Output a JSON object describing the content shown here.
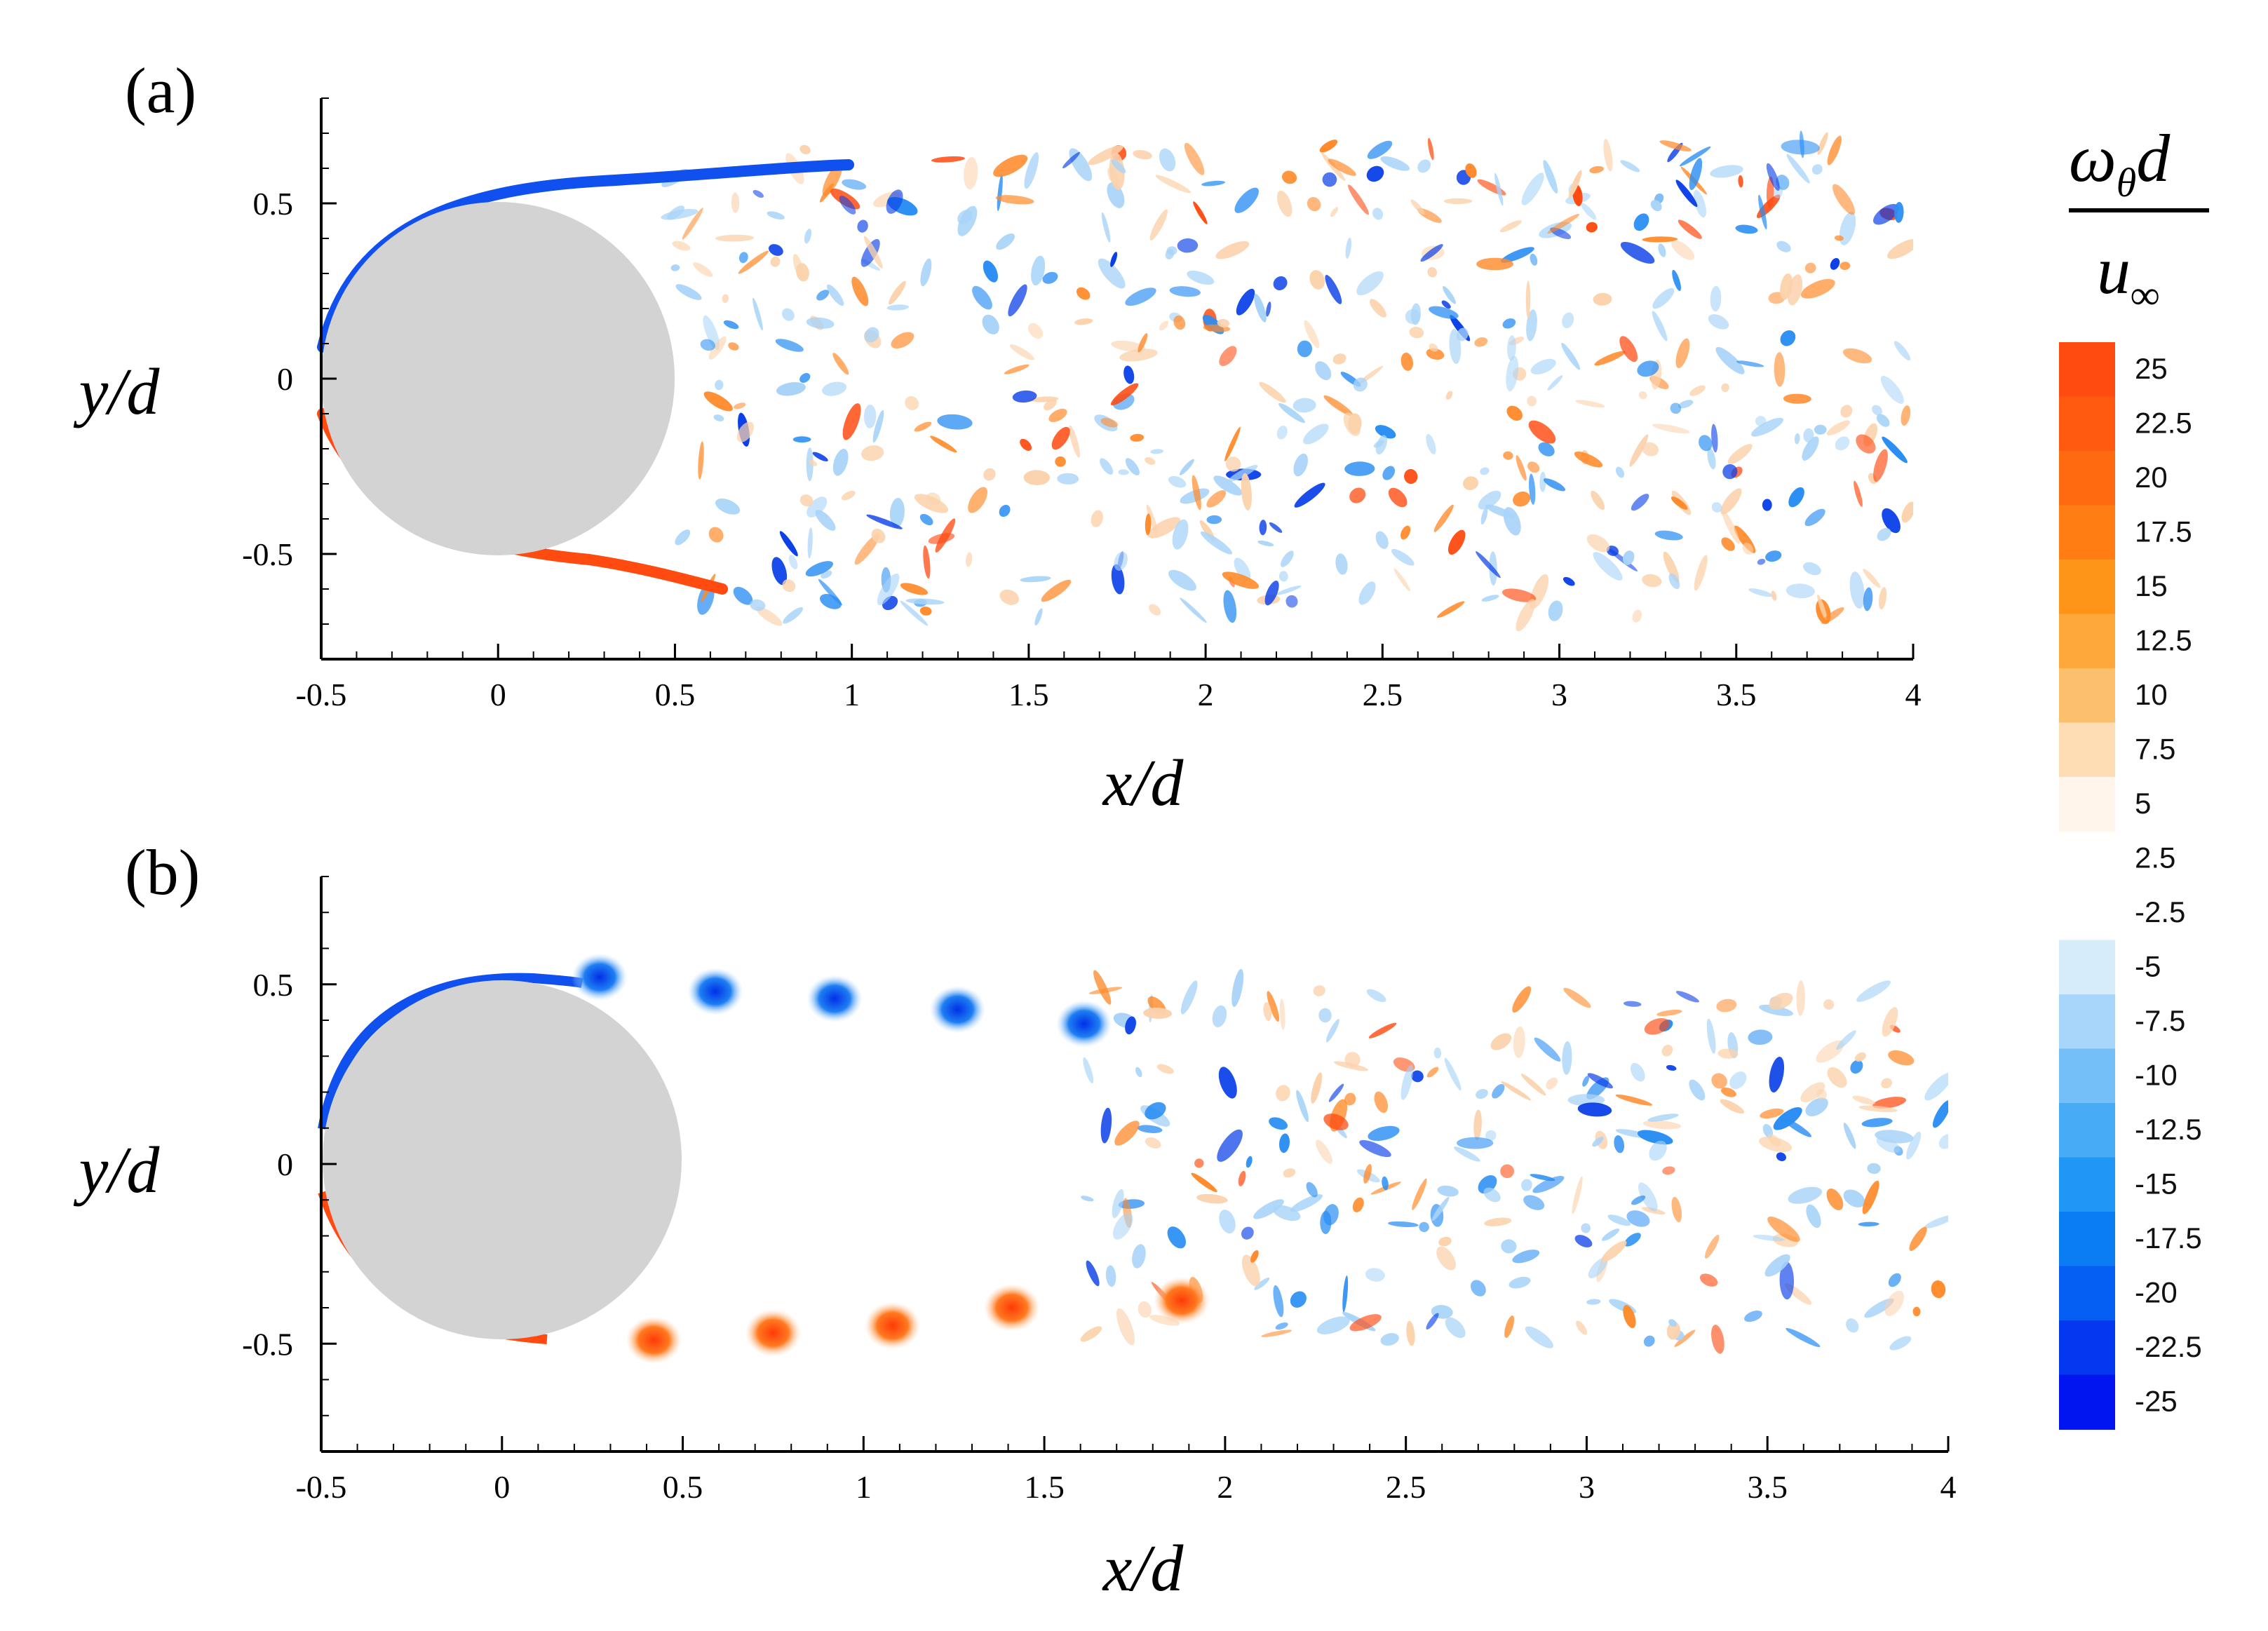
{
  "chart_data": [
    {
      "type": "heatmap",
      "panel": "(a)",
      "xlabel": "x/d",
      "ylabel": "y/d",
      "xlim": [
        -0.5,
        4
      ],
      "ylim": [
        -0.8,
        0.8
      ],
      "x_ticks": [
        "-0.5",
        "0",
        "0.5",
        "1",
        "1.5",
        "2",
        "2.5",
        "3",
        "3.5",
        "4"
      ],
      "y_ticks": [
        "0.5",
        "0",
        "-0.5"
      ],
      "body": {
        "shape": "circle",
        "center": [
          0,
          0
        ],
        "diameter": 1,
        "color": "#d3d3d3"
      },
      "description": "",
      "shear_layers": [
        {
          "name": "upper",
          "sign": "negative",
          "from_x": -0.5,
          "to_x": 1.05,
          "end_y": 0.6
        },
        {
          "name": "lower",
          "sign": "positive",
          "from_x": -0.5,
          "to_x": 0.65,
          "end_y": -0.6
        }
      ],
      "wake_extent_x": [
        0.5,
        4
      ]
    },
    {
      "type": "heatmap",
      "panel": "(b)",
      "xlabel": "x/d",
      "ylabel": "y/d",
      "xlim": [
        -0.5,
        4
      ],
      "ylim": [
        -0.8,
        0.8
      ],
      "x_ticks": [
        "-0.5",
        "0",
        "0.5",
        "1",
        "1.5",
        "2",
        "2.5",
        "3",
        "3.5",
        "4"
      ],
      "y_ticks": [
        "0.5",
        "0",
        "-0.5"
      ],
      "body": {
        "shape": "circle",
        "center": [
          0,
          0
        ],
        "diameter": 1,
        "color": "#d3d3d3"
      },
      "vortices_upper": [
        {
          "x": 0.27,
          "y": 0.52,
          "value": -25
        },
        {
          "x": 0.59,
          "y": 0.48,
          "value": -22.5
        },
        {
          "x": 0.92,
          "y": 0.46,
          "value": -20
        },
        {
          "x": 1.26,
          "y": 0.43,
          "value": -20
        },
        {
          "x": 1.61,
          "y": 0.39,
          "value": -17.5
        }
      ],
      "vortices_lower": [
        {
          "x": 0.42,
          "y": -0.49,
          "value": 25
        },
        {
          "x": 0.75,
          "y": -0.47,
          "value": 25
        },
        {
          "x": 1.08,
          "y": -0.45,
          "value": 22.5
        },
        {
          "x": 1.41,
          "y": -0.4,
          "value": 17.5
        },
        {
          "x": 1.88,
          "y": -0.38,
          "value": 15
        }
      ],
      "wake_extent_x": [
        1.6,
        4
      ]
    }
  ],
  "colorbar": {
    "title_top": "ω",
    "title_top_sub": "θ",
    "title_top_tail": "d",
    "title_bottom": "u",
    "title_bottom_sub": "∞",
    "levels": [
      "25",
      "22.5",
      "20",
      "17.5",
      "15",
      "12.5",
      "10",
      "7.5",
      "5",
      "2.5",
      "-2.5",
      "-5",
      "-7.5",
      "-10",
      "-12.5",
      "-15",
      "-17.5",
      "-20",
      "-22.5",
      "-25"
    ],
    "positive_colors": [
      "#ff4a10",
      "#ff5a10",
      "#ff6a10",
      "#ff7d12",
      "#ff9518",
      "#fea83c",
      "#fcbf6e",
      "#fedcb4",
      "#fff5eb"
    ],
    "negative_colors": [
      "#d7ecfb",
      "#a8d6fa",
      "#74bff8",
      "#47abf6",
      "#1e97f5",
      "#0a7df5",
      "#065ff3",
      "#0438f0",
      "#0015ef"
    ]
  },
  "palette": {
    "positive": "#ff5a14",
    "negative": "#1060f0",
    "body": "#d3d3d3"
  }
}
